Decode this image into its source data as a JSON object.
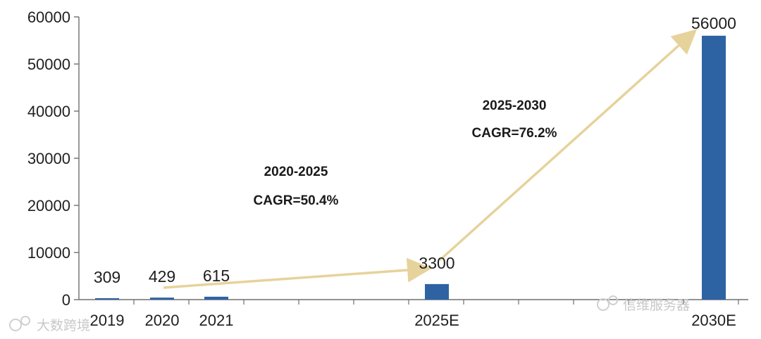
{
  "chart_data": {
    "type": "bar",
    "categories": [
      "2019",
      "2020",
      "2021",
      "2025E",
      "2030E"
    ],
    "values": [
      309,
      429,
      615,
      3300,
      56000
    ],
    "data_labels": [
      "309",
      "429",
      "615",
      "3300",
      "56000"
    ],
    "ylim": [
      0,
      60000
    ],
    "yticks": [
      0,
      10000,
      20000,
      30000,
      40000,
      50000,
      60000
    ],
    "grid": false,
    "bar_color": "#2e63a3",
    "arrow_color": "#e6d39b",
    "annotations": [
      {
        "period": "2020-2025",
        "text": "CAGR=50.4%"
      },
      {
        "period": "2025-2030",
        "text": "CAGR=76.2%"
      }
    ]
  },
  "watermarks": {
    "left": "大数跨境",
    "right": "信维服务器"
  }
}
